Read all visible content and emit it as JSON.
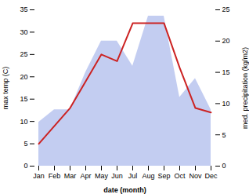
{
  "chart_data": {
    "type": "line",
    "xlabel": "date (month)",
    "ylabel": "max temp (C)",
    "y2label": "med. precipitation (kg/m2)",
    "categories": [
      "Jan",
      "Feb",
      "Mar",
      "Apr",
      "May",
      "Jun",
      "Jul",
      "Aug",
      "Sep",
      "Oct",
      "Nov",
      "Dec"
    ],
    "series": [
      {
        "name": "med. precipitation (kg/m2)",
        "type": "area",
        "axis": "y2",
        "color": "#b8c4ee",
        "values": [
          7,
          9,
          9,
          15,
          20,
          20,
          16,
          24,
          24,
          11,
          14,
          9
        ]
      },
      {
        "name": "max temp (C)",
        "type": "line",
        "color": "#cc2222",
        "values": [
          5,
          9,
          13,
          19,
          25,
          23.5,
          32,
          32,
          32,
          22,
          13,
          12
        ]
      }
    ],
    "ylim": [
      0,
      35
    ],
    "yticks": [
      0,
      5,
      10,
      15,
      20,
      25,
      30,
      35
    ],
    "y2lim": [
      0,
      25
    ],
    "y2ticks": [
      0,
      5,
      10,
      15,
      20,
      25
    ]
  }
}
